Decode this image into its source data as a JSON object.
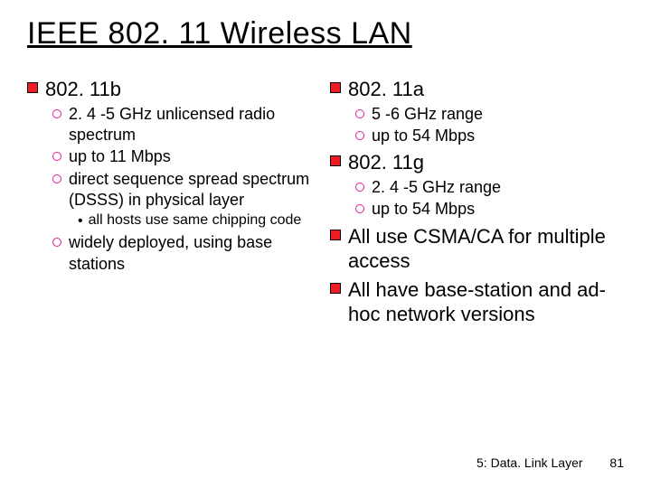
{
  "title": "IEEE 802. 11 Wireless LAN",
  "left": {
    "h": "802. 11b",
    "items": [
      {
        "t": "2. 4 -5 GHz unlicensed radio spectrum"
      },
      {
        "t": "up to 11 Mbps"
      },
      {
        "t": "direct sequence spread spectrum (DSSS) in physical layer",
        "sub": [
          "all hosts use same chipping code"
        ]
      },
      {
        "t": "widely deployed, using base stations"
      }
    ]
  },
  "right": [
    {
      "h": "802. 11a",
      "items": [
        {
          "t": "5 -6 GHz range"
        },
        {
          "t": "up to 54 Mbps"
        }
      ]
    },
    {
      "h": "802. 11g",
      "items": [
        {
          "t": "2. 4 -5 GHz range"
        },
        {
          "t": "up to 54 Mbps"
        }
      ]
    },
    {
      "h": "All use CSMA/CA for multiple access"
    },
    {
      "h": "All have base-station and ad-hoc network versions"
    }
  ],
  "footer": {
    "label": "5: Data. Link Layer",
    "page": "81"
  },
  "colors": {
    "square": "#ed1c24",
    "circle_border": "#e31a9c",
    "text": "#000000",
    "bg": "#ffffff"
  }
}
